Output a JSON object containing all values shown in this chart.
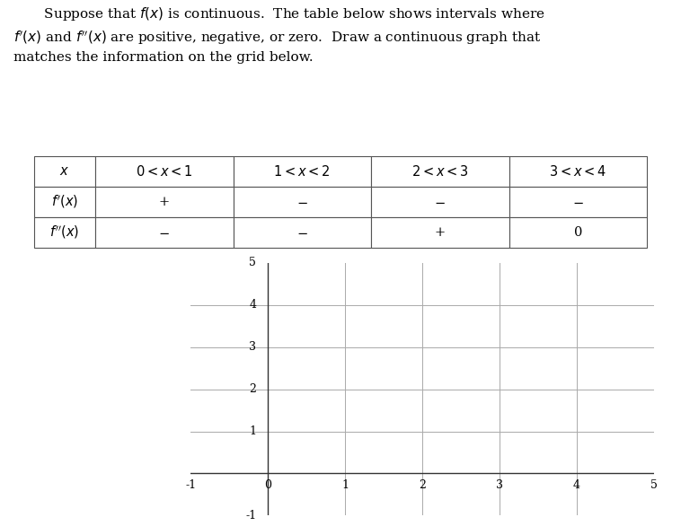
{
  "paragraph": "       Suppose that $f(x)$ is continuous.  The table below shows intervals where\n$f'(x)$ and $f''(x)$ are positive, negative, or zero.  Draw a continuous graph that\nmatches the information on the grid below.",
  "table_col_headers": [
    "$x$",
    "$0 < x < 1$",
    "$1 < x < 2$",
    "$2 < x < 3$",
    "$3 < x < 4$"
  ],
  "table_row1_label": "$f'(x)$",
  "table_row1_values": [
    "+",
    "$-$",
    "$-$",
    "$-$"
  ],
  "table_row2_label": "$f''(x)$",
  "table_row2_values": [
    "$-$",
    "$-$",
    "+",
    "0"
  ],
  "grid_xlim": [
    -1,
    5
  ],
  "grid_ylim": [
    -1,
    5
  ],
  "grid_color": "#aaaaaa",
  "axis_color": "#333333",
  "text_color": "#000000",
  "background_color": "#ffffff",
  "table_border_color": "#555555",
  "font_size_text": 11,
  "font_size_table": 10.5,
  "font_size_tick": 9
}
